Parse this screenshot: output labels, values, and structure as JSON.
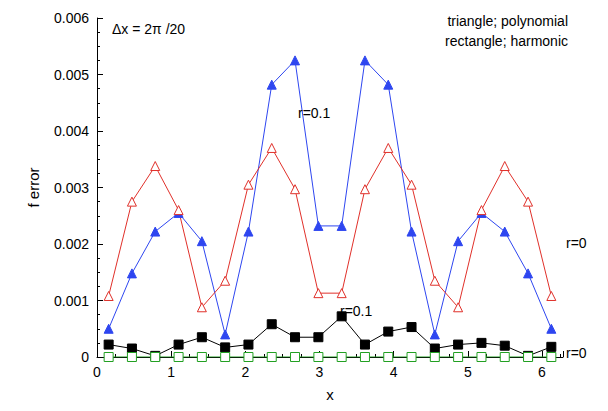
{
  "chart_data": {
    "type": "line",
    "x_label": "x",
    "y_label": "f error",
    "annotations": [
      "Δx = 2π /20",
      "triangle; polynomial",
      "rectangle; harmonic",
      "r=0.1",
      "r=0",
      "r=0.1",
      "r=0"
    ],
    "x": [
      0.157,
      0.471,
      0.785,
      1.1,
      1.414,
      1.728,
      2.042,
      2.356,
      2.67,
      2.985,
      3.299,
      3.613,
      3.927,
      4.241,
      4.555,
      4.869,
      5.184,
      5.498,
      5.812,
      6.126
    ],
    "series": [
      {
        "color": "#2e46f0",
        "marker": "triangle",
        "values": [
          0.0005,
          0.00148,
          0.00222,
          0.00255,
          0.00205,
          0.0004,
          0.00222,
          0.00482,
          0.00525,
          0.00232,
          0.00232,
          0.00525,
          0.00482,
          0.00222,
          0.0004,
          0.00205,
          0.00255,
          0.00222,
          0.00148,
          0.0005
        ]
      },
      {
        "color": "#e0302a",
        "marker": "triangle-open",
        "values": [
          0.00108,
          0.00275,
          0.00338,
          0.0026,
          0.00088,
          0.00135,
          0.00305,
          0.0037,
          0.00297,
          0.00113,
          0.00113,
          0.00297,
          0.0037,
          0.00305,
          0.00135,
          0.00088,
          0.0026,
          0.00338,
          0.00275,
          0.00108
        ]
      },
      {
        "color": "#000000",
        "marker": "square",
        "values": [
          0.00022,
          0.00015,
          2e-05,
          0.00022,
          0.00035,
          0.00017,
          0.00022,
          0.00058,
          0.00035,
          0.00035,
          0.00072,
          0.00022,
          0.00045,
          0.00053,
          0.00015,
          0.00022,
          0.00025,
          0.0002,
          2e-05,
          0.00018
        ]
      },
      {
        "color": "#22a022",
        "marker": "square-open",
        "values": [
          0,
          0,
          0,
          0,
          0,
          0,
          0,
          0,
          0,
          0,
          0,
          0,
          0,
          0,
          0,
          0,
          0,
          0,
          0,
          0
        ]
      }
    ],
    "xlim": [
      0,
      6.2832
    ],
    "xticks": [
      0,
      1,
      2,
      3,
      4,
      5,
      6
    ],
    "ylim": [
      0,
      0.006
    ],
    "yticks": [
      0,
      0.001,
      0.002,
      0.003,
      0.004,
      0.005,
      0.006
    ],
    "grid": false
  }
}
